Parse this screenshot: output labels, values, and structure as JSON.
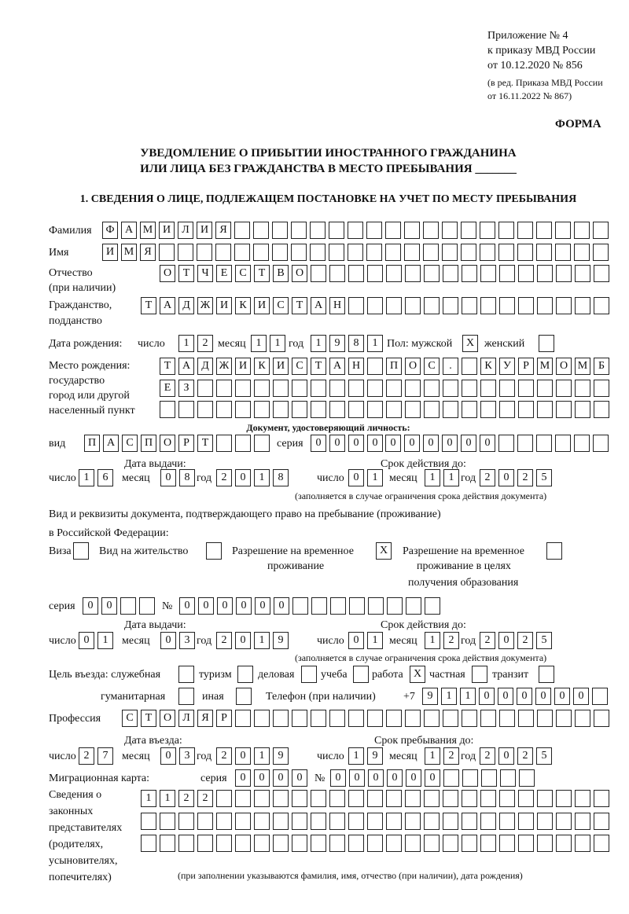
{
  "header": {
    "l1": "Приложение № 4",
    "l2": "к приказу МВД России",
    "l3": "от 10.12.2020 № 856",
    "l4": "(в ред. Приказа МВД России",
    "l5": "от 16.11.2022 № 867)",
    "forma": "ФОРМА"
  },
  "title": {
    "l1": "УВЕДОМЛЕНИЕ О ПРИБЫТИИ ИНОСТРАННОГО ГРАЖДАНИНА",
    "l2": "ИЛИ ЛИЦА БЕЗ ГРАЖДАНСТВА В МЕСТО ПРЕБЫВАНИЯ _______"
  },
  "section1": "1. СВЕДЕНИЯ О ЛИЦЕ, ПОДЛЕЖАЩЕМ ПОСТАНОВКЕ НА УЧЕТ ПО МЕСТУ ПРЕБЫВАНИЯ",
  "labels": {
    "surname": "Фамилия",
    "name": "Имя",
    "patronymic": "Отчество",
    "patronymic2": "(при наличии)",
    "citizenship": "Гражданство,",
    "citizenship2": "подданство",
    "birth_date": "Дата рождения:",
    "day": "число",
    "month": "месяц",
    "year": "год",
    "sex": "Пол: мужской",
    "female": "женский",
    "birthplace": "Место рождения:",
    "bp2": "государство",
    "bp3": "город или другой",
    "bp4": "населенный пункт",
    "id_doc": "Документ, удостоверяющий личность:",
    "kind": "вид",
    "series": "серия",
    "number": "№",
    "issue_date": "Дата выдачи:",
    "valid_until": "Срок действия до:",
    "valid_note": "(заполняется в случае ограничения срока действия документа)",
    "right_doc1": "Вид и реквизиты документа, подтверждающего право на пребывание (проживание)",
    "right_doc2": "в Российской Федерации:",
    "visa": "Виза",
    "residence": "Вид на жительство",
    "trp1": "Разрешение на временное",
    "trp2": "проживание",
    "trpe1": "Разрешение на временное",
    "trpe2": "проживание в целях",
    "trpe3": "получения образования",
    "purpose": "Цель въезда: служебная",
    "tourism": "туризм",
    "business": "деловая",
    "study": "учеба",
    "work": "работа",
    "private": "частная",
    "transit": "транзит",
    "humanitarian": "гуманитарная",
    "other": "иная",
    "phone": "Телефон (при наличии)",
    "phone_prefix": "+7",
    "profession": "Профессия",
    "entry_date": "Дата въезда:",
    "stay_until": "Срок пребывания до:",
    "migration_card": "Миграционная карта:",
    "reps1": "Сведения о",
    "reps2": "законных",
    "reps3": "представителях",
    "reps4": "(родителях,",
    "reps5": "усыновителях,",
    "reps6": "попечителях)",
    "reps_note": "(при заполнении указываются фамилия, имя, отчество (при наличии), дата рождения)"
  },
  "fields": {
    "surname": [
      "Ф",
      "А",
      "М",
      "И",
      "Л",
      "И",
      "Я"
    ],
    "name": [
      "И",
      "М",
      "Я"
    ],
    "patronymic": [
      "О",
      "Т",
      "Ч",
      "Е",
      "С",
      "Т",
      "В",
      "О"
    ],
    "citizenship": [
      "Т",
      "А",
      "Д",
      "Ж",
      "И",
      "К",
      "И",
      "С",
      "Т",
      "А",
      "Н"
    ],
    "birth_day": [
      "1",
      "2"
    ],
    "birth_month": [
      "1",
      "1"
    ],
    "birth_year": [
      "1",
      "9",
      "8",
      "1"
    ],
    "sex_male": [
      "X"
    ],
    "sex_female": [
      ""
    ],
    "birthplace1": [
      "Т",
      "А",
      "Д",
      "Ж",
      "И",
      "К",
      "И",
      "С",
      "Т",
      "А",
      "Н",
      "",
      "П",
      "О",
      "С",
      ".",
      "",
      "К",
      "У",
      "Р",
      "М",
      "О",
      "М",
      "Б"
    ],
    "birthplace2": [
      "Е",
      "З"
    ],
    "birthplace3": [],
    "doc_kind": [
      "П",
      "А",
      "С",
      "П",
      "О",
      "Р",
      "Т"
    ],
    "doc_series": [
      "0",
      "0",
      "0",
      "0"
    ],
    "doc_number": [
      "0",
      "0",
      "0",
      "0",
      "0",
      "0"
    ],
    "doc_issue_day": [
      "1",
      "6"
    ],
    "doc_issue_month": [
      "0",
      "8"
    ],
    "doc_issue_year": [
      "2",
      "0",
      "1",
      "8"
    ],
    "doc_valid_day": [
      "0",
      "1"
    ],
    "doc_valid_month": [
      "1",
      "1"
    ],
    "doc_valid_year": [
      "2",
      "0",
      "2",
      "5"
    ],
    "visa": [
      ""
    ],
    "residence": [
      ""
    ],
    "trp": [
      "X"
    ],
    "trpe": [
      ""
    ],
    "right_series": [
      "0",
      "0"
    ],
    "right_number": [
      "0",
      "0",
      "0",
      "0",
      "0",
      "0"
    ],
    "right_issue_day": [
      "0",
      "1"
    ],
    "right_issue_month": [
      "0",
      "3"
    ],
    "right_issue_year": [
      "2",
      "0",
      "1",
      "9"
    ],
    "right_valid_day": [
      "0",
      "1"
    ],
    "right_valid_month": [
      "1",
      "2"
    ],
    "right_valid_year": [
      "2",
      "0",
      "2",
      "5"
    ],
    "p_official": [
      ""
    ],
    "p_tourism": [
      ""
    ],
    "p_business": [
      ""
    ],
    "p_study": [
      ""
    ],
    "p_work": [
      "X"
    ],
    "p_private": [
      ""
    ],
    "p_transit": [
      ""
    ],
    "p_humanitarian": [
      ""
    ],
    "p_other": [
      ""
    ],
    "phone": [
      "9",
      "1",
      "1",
      "0",
      "0",
      "0",
      "0",
      "0",
      "0"
    ],
    "profession": [
      "С",
      "Т",
      "О",
      "Л",
      "Я",
      "Р"
    ],
    "entry_day": [
      "2",
      "7"
    ],
    "entry_month": [
      "0",
      "3"
    ],
    "entry_year": [
      "2",
      "0",
      "1",
      "9"
    ],
    "stay_day": [
      "1",
      "9"
    ],
    "stay_month": [
      "1",
      "2"
    ],
    "stay_year": [
      "2",
      "0",
      "2",
      "5"
    ],
    "mc_series": [
      "0",
      "0",
      "0",
      "0"
    ],
    "mc_number": [
      "0",
      "0",
      "0",
      "0",
      "0",
      "0"
    ],
    "reps1": [
      "1",
      "1",
      "2",
      "2"
    ],
    "reps2": [],
    "reps3": []
  }
}
